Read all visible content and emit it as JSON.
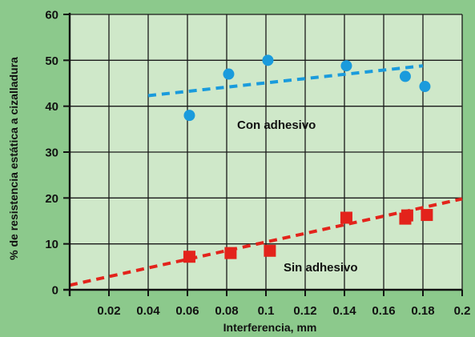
{
  "colors": {
    "page_background": "#8cc98c",
    "plot_background": "#cfe8c9",
    "grid": "#1a1a1a",
    "blue_series": "#1a9bdc",
    "red_series": "#e3231b"
  },
  "chart_data": {
    "type": "scatter",
    "title": "",
    "xlabel": "Interferencia, mm",
    "ylabel": "% de resistencia estática a cizalladura",
    "xlim": [
      0,
      0.2
    ],
    "ylim": [
      0,
      60
    ],
    "x_ticks": [
      0.02,
      0.04,
      0.06,
      0.08,
      0.1,
      0.12,
      0.14,
      0.16,
      0.18,
      0.2
    ],
    "x_tick_labels": [
      "0.02",
      "0.04",
      "0.06",
      "0.08",
      "0.1",
      "0.12",
      "0.14",
      "0.16",
      "0.18",
      "0.2"
    ],
    "y_ticks": [
      0,
      10,
      20,
      30,
      40,
      50,
      60
    ],
    "y_tick_labels": [
      "0",
      "10",
      "20",
      "30",
      "40",
      "50",
      "60"
    ],
    "grid": true,
    "legend": "none",
    "annotations": [
      "Con adhesivo",
      "Sin adhesivo"
    ],
    "series": [
      {
        "marker": "circle",
        "color": "#1a9bdc",
        "points": [
          [
            0.061,
            38
          ],
          [
            0.081,
            47
          ],
          [
            0.101,
            50
          ],
          [
            0.141,
            48.8
          ],
          [
            0.171,
            46.5
          ],
          [
            0.181,
            44.3
          ]
        ],
        "trend": [
          [
            0.04,
            42.3
          ],
          [
            0.18,
            48.8
          ]
        ]
      },
      {
        "marker": "square",
        "color": "#e3231b",
        "points": [
          [
            0.061,
            7.2
          ],
          [
            0.082,
            8
          ],
          [
            0.102,
            8.5
          ],
          [
            0.141,
            15.7
          ],
          [
            0.171,
            15.5
          ],
          [
            0.172,
            16.2
          ],
          [
            0.182,
            16.3
          ]
        ],
        "trend": [
          [
            0.0,
            1
          ],
          [
            0.2,
            19.8
          ]
        ]
      }
    ]
  }
}
